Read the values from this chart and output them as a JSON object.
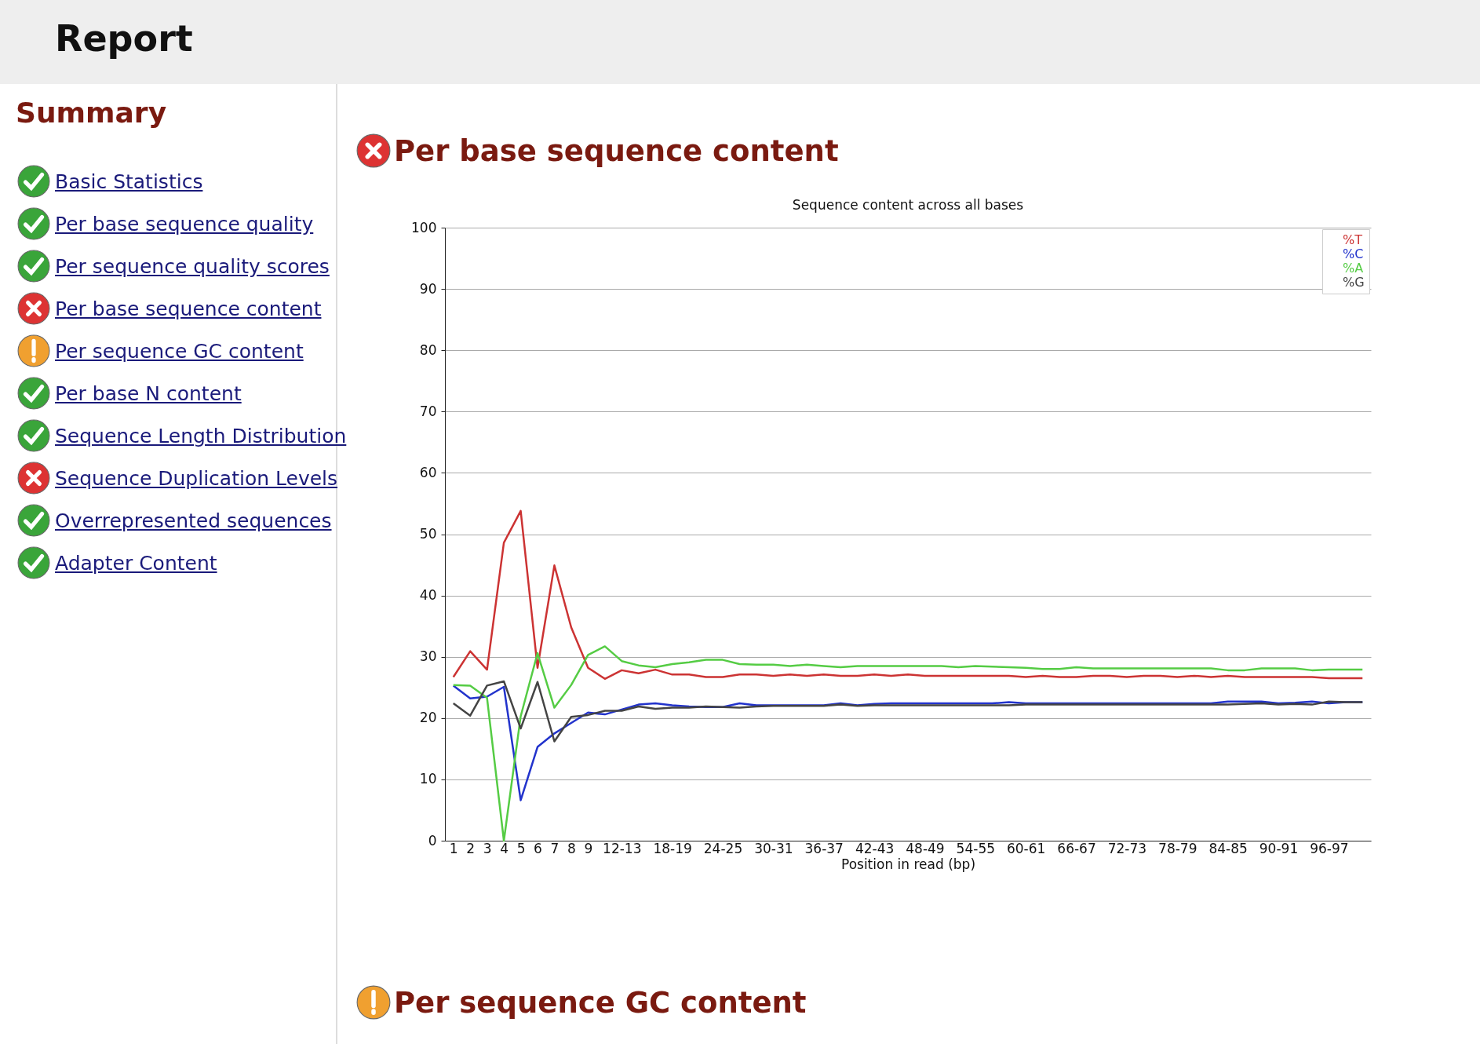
{
  "chart_data": {
    "type": "line",
    "title": "Per base sequence content",
    "subtitle": "Sequence content across all bases",
    "xlabel": "Position in read (bp)",
    "annotations": [
      "Report",
      "Summary",
      "Basic Statistics",
      "Per base sequence quality",
      "Per sequence quality scores",
      "Per base sequence content",
      "Per sequence GC content",
      "Per base N content",
      "Sequence Length Distribution",
      "Sequence Duplication Levels",
      "Overrepresented sequences",
      "Adapter Content",
      "Per sequence GC content"
    ],
    "categories": [
      "1",
      "2",
      "3",
      "4",
      "5",
      "6",
      "7",
      "8",
      "9",
      null,
      "12-13",
      null,
      null,
      "18-19",
      null,
      null,
      "24-25",
      null,
      null,
      "30-31",
      null,
      null,
      "36-37",
      null,
      null,
      "42-43",
      null,
      null,
      "48-49",
      null,
      null,
      "54-55",
      null,
      null,
      "60-61",
      null,
      null,
      "66-67",
      null,
      null,
      "72-73",
      null,
      null,
      "78-79",
      null,
      null,
      "84-85",
      null,
      null,
      "90-91",
      null,
      null,
      "96-97",
      null,
      null
    ],
    "series": [
      {
        "name": "%T",
        "color": "#cc3333",
        "values": [
          26.7,
          30.9,
          27.9,
          48.6,
          53.8,
          28.2,
          44.9,
          34.8,
          28.2,
          26.4,
          27.8,
          27.3,
          27.9,
          27.1,
          27.1,
          26.7,
          26.7,
          27.1,
          27.1,
          26.9,
          27.1,
          26.9,
          27.1,
          26.9,
          26.9,
          27.1,
          26.9,
          27.1,
          26.9,
          26.9,
          26.9,
          26.9,
          26.9,
          26.9,
          26.7,
          26.9,
          26.7,
          26.7,
          26.9,
          26.9,
          26.7,
          26.9,
          26.9,
          26.7,
          26.9,
          26.7,
          26.9,
          26.7,
          26.7,
          26.7,
          26.7,
          26.7,
          26.5,
          26.5,
          26.5
        ]
      },
      {
        "name": "%C",
        "color": "#2233cc",
        "values": [
          25.3,
          23.2,
          23.5,
          25.1,
          6.6,
          15.3,
          17.5,
          19.2,
          20.9,
          20.6,
          21.4,
          22.2,
          22.4,
          22.1,
          21.9,
          21.8,
          21.8,
          22.4,
          22.1,
          22.1,
          22.1,
          22.1,
          22.1,
          22.4,
          22.1,
          22.3,
          22.4,
          22.4,
          22.4,
          22.4,
          22.4,
          22.4,
          22.4,
          22.6,
          22.4,
          22.4,
          22.4,
          22.4,
          22.4,
          22.4,
          22.4,
          22.4,
          22.4,
          22.4,
          22.4,
          22.4,
          22.7,
          22.7,
          22.7,
          22.4,
          22.5,
          22.7,
          22.4,
          22.6,
          22.6
        ]
      },
      {
        "name": "%A",
        "color": "#55cc44",
        "values": [
          25.4,
          25.3,
          23.3,
          0,
          20.3,
          30.6,
          21.7,
          25.4,
          30.3,
          31.7,
          29.3,
          28.6,
          28.3,
          28.8,
          29.1,
          29.5,
          29.5,
          28.8,
          28.7,
          28.7,
          28.5,
          28.7,
          28.5,
          28.3,
          28.5,
          28.5,
          28.5,
          28.5,
          28.5,
          28.5,
          28.3,
          28.5,
          28.4,
          28.3,
          28.2,
          28.0,
          28.0,
          28.3,
          28.1,
          28.1,
          28.1,
          28.1,
          28.1,
          28.1,
          28.1,
          28.1,
          27.8,
          27.8,
          28.1,
          28.1,
          28.1,
          27.8,
          27.9,
          27.9,
          27.9
        ]
      },
      {
        "name": "%G",
        "color": "#444444",
        "values": [
          22.4,
          20.4,
          25.3,
          26.0,
          18.3,
          25.9,
          16.2,
          20.2,
          20.5,
          21.2,
          21.2,
          21.9,
          21.5,
          21.7,
          21.7,
          21.9,
          21.8,
          21.7,
          21.9,
          22.0,
          22.0,
          22.0,
          22.0,
          22.2,
          22.0,
          22.1,
          22.1,
          22.1,
          22.1,
          22.1,
          22.1,
          22.1,
          22.1,
          22.1,
          22.2,
          22.2,
          22.2,
          22.2,
          22.2,
          22.2,
          22.2,
          22.2,
          22.2,
          22.2,
          22.2,
          22.2,
          22.2,
          22.3,
          22.4,
          22.2,
          22.3,
          22.2,
          22.7,
          22.6,
          22.6
        ]
      }
    ],
    "ylim": [
      0,
      100
    ],
    "yticks": [
      0,
      10,
      20,
      30,
      40,
      50,
      60,
      70,
      80,
      90,
      100
    ],
    "grid": "y",
    "legend": "top right"
  }
}
